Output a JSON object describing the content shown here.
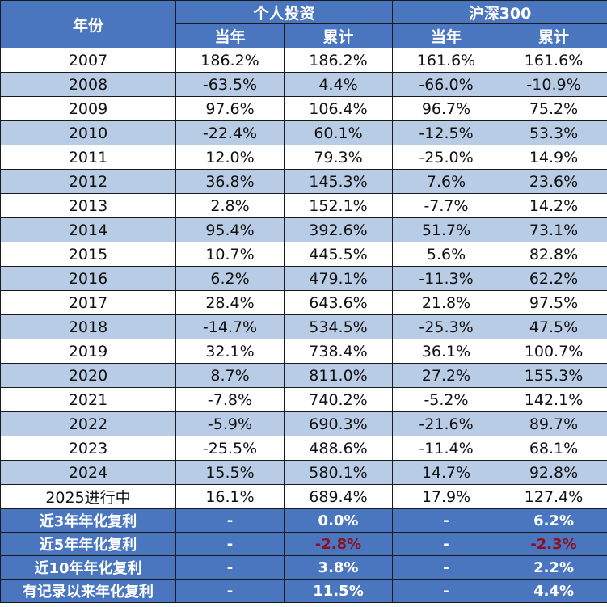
{
  "header": {
    "year_label": "年份",
    "group1": "个人投资",
    "group2": "沪深300",
    "sub": [
      "当年",
      "累计",
      "当年",
      "累计"
    ]
  },
  "rows": [
    {
      "year": "2007",
      "p_year": "186.2%",
      "p_cum": "186.2%",
      "h_year": "161.6%",
      "h_cum": "161.6%"
    },
    {
      "year": "2008",
      "p_year": "-63.5%",
      "p_cum": "4.4%",
      "h_year": "-66.0%",
      "h_cum": "-10.9%"
    },
    {
      "year": "2009",
      "p_year": "97.6%",
      "p_cum": "106.4%",
      "h_year": "96.7%",
      "h_cum": "75.2%"
    },
    {
      "year": "2010",
      "p_year": "-22.4%",
      "p_cum": "60.1%",
      "h_year": "-12.5%",
      "h_cum": "53.3%"
    },
    {
      "year": "2011",
      "p_year": "12.0%",
      "p_cum": "79.3%",
      "h_year": "-25.0%",
      "h_cum": "14.9%"
    },
    {
      "year": "2012",
      "p_year": "36.8%",
      "p_cum": "145.3%",
      "h_year": "7.6%",
      "h_cum": "23.6%"
    },
    {
      "year": "2013",
      "p_year": "2.8%",
      "p_cum": "152.1%",
      "h_year": "-7.7%",
      "h_cum": "14.2%"
    },
    {
      "year": "2014",
      "p_year": "95.4%",
      "p_cum": "392.6%",
      "h_year": "51.7%",
      "h_cum": "73.1%"
    },
    {
      "year": "2015",
      "p_year": "10.7%",
      "p_cum": "445.5%",
      "h_year": "5.6%",
      "h_cum": "82.8%"
    },
    {
      "year": "2016",
      "p_year": "6.2%",
      "p_cum": "479.1%",
      "h_year": "-11.3%",
      "h_cum": "62.2%"
    },
    {
      "year": "2017",
      "p_year": "28.4%",
      "p_cum": "643.6%",
      "h_year": "21.8%",
      "h_cum": "97.5%"
    },
    {
      "year": "2018",
      "p_year": "-14.7%",
      "p_cum": "534.5%",
      "h_year": "-25.3%",
      "h_cum": "47.5%"
    },
    {
      "year": "2019",
      "p_year": "32.1%",
      "p_cum": "738.4%",
      "h_year": "36.1%",
      "h_cum": "100.7%"
    },
    {
      "year": "2020",
      "p_year": "8.7%",
      "p_cum": "811.0%",
      "h_year": "27.2%",
      "h_cum": "155.3%"
    },
    {
      "year": "2021",
      "p_year": "-7.8%",
      "p_cum": "740.2%",
      "h_year": "-5.2%",
      "h_cum": "142.1%"
    },
    {
      "year": "2022",
      "p_year": "-5.9%",
      "p_cum": "690.3%",
      "h_year": "-21.6%",
      "h_cum": "89.7%"
    },
    {
      "year": "2023",
      "p_year": "-25.5%",
      "p_cum": "488.6%",
      "h_year": "-11.4%",
      "h_cum": "68.1%"
    },
    {
      "year": "2024",
      "p_year": "15.5%",
      "p_cum": "580.1%",
      "h_year": "14.7%",
      "h_cum": "92.8%"
    },
    {
      "year": "2025进行中",
      "p_year": "16.1%",
      "p_cum": "689.4%",
      "h_year": "17.9%",
      "h_cum": "127.4%"
    }
  ],
  "summary": [
    {
      "label": "近3年年化复利",
      "p_year": "-",
      "p_cum": "0.0%",
      "h_year": "-",
      "h_cum": "6.2%"
    },
    {
      "label": "近5年年化复利",
      "p_year": "-",
      "p_cum": "-2.8%",
      "h_year": "-",
      "h_cum": "-2.3%"
    },
    {
      "label": "近10年年化复利",
      "p_year": "-",
      "p_cum": "3.8%",
      "h_year": "-",
      "h_cum": "2.2%"
    },
    {
      "label": "有记录以来年化复利",
      "p_year": "-",
      "p_cum": "11.5%",
      "h_year": "-",
      "h_cum": "4.4%"
    }
  ],
  "colors": {
    "header_bg": "#4a76c0",
    "row_alt_bg": "#b9cce6",
    "negative_text": "#b0202a",
    "summary_negative_text": "#8b1020"
  }
}
